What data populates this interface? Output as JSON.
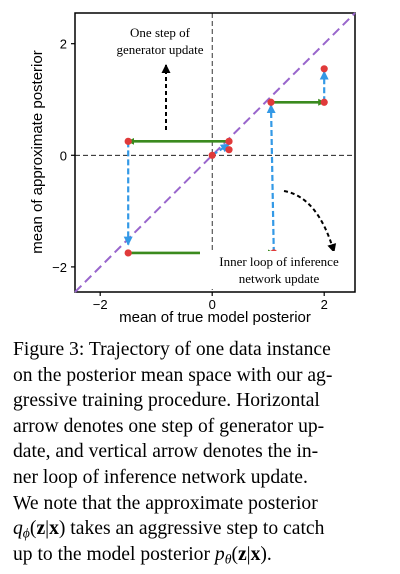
{
  "chart_data": {
    "type": "scatter",
    "xlabel": "mean of true model posterior",
    "ylabel": "mean of approximate posterior",
    "xlim": [
      -2.45,
      2.55
    ],
    "ylim": [
      -2.45,
      2.55
    ],
    "xticks": [
      -2,
      0,
      2
    ],
    "yticks": [
      -2,
      0,
      2
    ],
    "xtick_labels": [
      "−2",
      "0",
      "2"
    ],
    "ytick_labels": [
      "−2",
      "0",
      "2"
    ],
    "grid": false,
    "dashed_crosshair_at": [
      0,
      0
    ],
    "diagonal": "y = x",
    "colors": {
      "diagonal": "#9966cc",
      "generator_arrow": "#3a8a1e",
      "inference_arrow": "#3399e6",
      "point": "#e03a3a",
      "annotation_arrow": "#000000"
    },
    "generator_updates": [
      {
        "from": [
          0.3,
          0.25
        ],
        "to": [
          -1.5,
          0.25
        ]
      },
      {
        "from": [
          -1.5,
          -1.75
        ],
        "to": [
          1.1,
          -1.75
        ]
      },
      {
        "from": [
          1.05,
          0.95
        ],
        "to": [
          2.0,
          0.95
        ]
      }
    ],
    "inference_updates": [
      {
        "from": [
          0.0,
          0.0
        ],
        "to": [
          0.3,
          0.2
        ]
      },
      {
        "from": [
          -1.5,
          0.25
        ],
        "to": [
          -1.5,
          -1.6
        ]
      },
      {
        "from": [
          1.1,
          -1.75
        ],
        "to": [
          1.05,
          0.9
        ]
      },
      {
        "from": [
          2.0,
          0.95
        ],
        "to": [
          2.0,
          1.5
        ]
      }
    ],
    "points": [
      [
        0.0,
        0.0
      ],
      [
        0.3,
        0.1
      ],
      [
        0.3,
        0.25
      ],
      [
        -1.5,
        0.25
      ],
      [
        -1.5,
        -1.75
      ],
      [
        1.1,
        -1.75
      ],
      [
        1.05,
        0.95
      ],
      [
        2.0,
        0.95
      ],
      [
        2.0,
        1.55
      ]
    ],
    "annotations": [
      {
        "text": "One step of generator update"
      },
      {
        "text": "Inner loop of inference network update"
      }
    ]
  },
  "annotations": {
    "generator_line1": "One step of",
    "generator_line2": "generator update",
    "inference_line1": "Inner loop of inference",
    "inference_line2": "network update"
  },
  "caption": {
    "lines": [
      "Figure 3: Trajectory of one data instance",
      "on the posterior mean space with our ag-",
      "gressive training procedure.  Horizontal",
      "arrow denotes one step of generator up-",
      "date, and vertical arrow denotes the in-",
      "ner loop of inference network update.",
      "We note that the approximate posterior"
    ],
    "math_line": {
      "q_symbol": "q",
      "q_sub": "ϕ",
      "q_args_open": "(",
      "bold_z1": "z",
      "bar1": "|",
      "bold_x1": "x",
      "q_args_close": ")",
      "middle_text": " takes an aggressive step to catch"
    },
    "final_line": {
      "prefix": "up to the model posterior ",
      "p_symbol": "p",
      "p_sub": "θ",
      "p_args_open": "(",
      "bold_z2": "z",
      "bar2": "|",
      "bold_x2": "x",
      "p_args_close": ").",
      "suffix": ""
    }
  }
}
